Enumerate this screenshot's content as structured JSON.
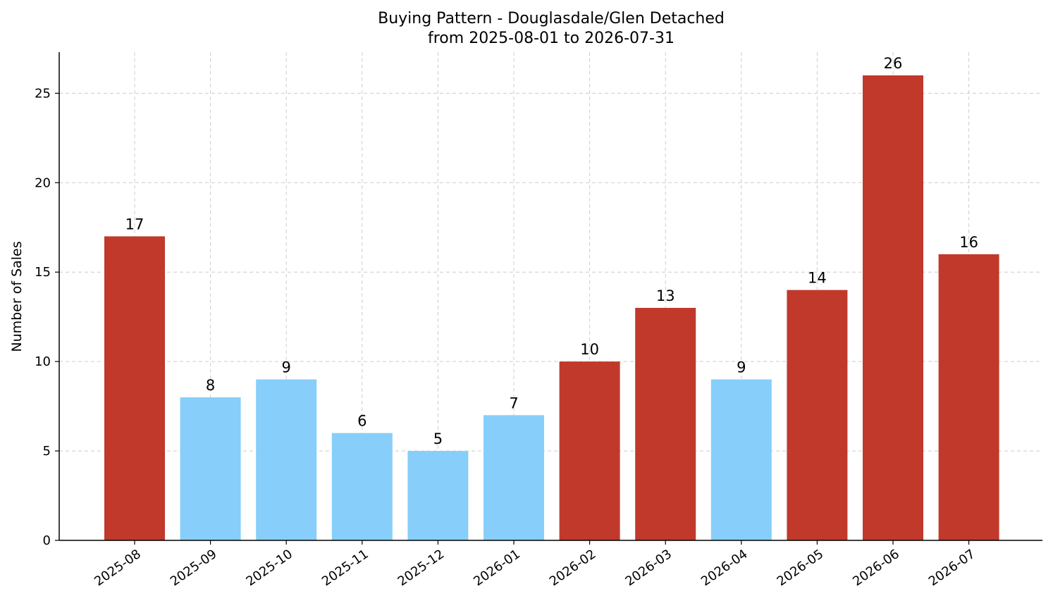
{
  "chart_data": {
    "type": "bar",
    "title": "Buying Pattern - Douglasdale/Glen Detached",
    "subtitle": "from 2025-08-01 to 2026-07-31",
    "xlabel": "",
    "ylabel": "Number of Sales",
    "categories": [
      "2025-08",
      "2025-09",
      "2025-10",
      "2025-11",
      "2025-12",
      "2026-01",
      "2026-02",
      "2026-03",
      "2026-04",
      "2026-05",
      "2026-06",
      "2026-07"
    ],
    "values": [
      17,
      8,
      9,
      6,
      5,
      7,
      10,
      13,
      9,
      14,
      26,
      16
    ],
    "bar_colors": [
      "#c0392b",
      "#87cefa",
      "#87cefa",
      "#87cefa",
      "#87cefa",
      "#87cefa",
      "#c0392b",
      "#c0392b",
      "#87cefa",
      "#c0392b",
      "#c0392b",
      "#c0392b"
    ],
    "ylim": [
      0,
      27.3
    ],
    "yticks": [
      0,
      5,
      10,
      15,
      20,
      25
    ],
    "grid": true,
    "legend": "none"
  }
}
